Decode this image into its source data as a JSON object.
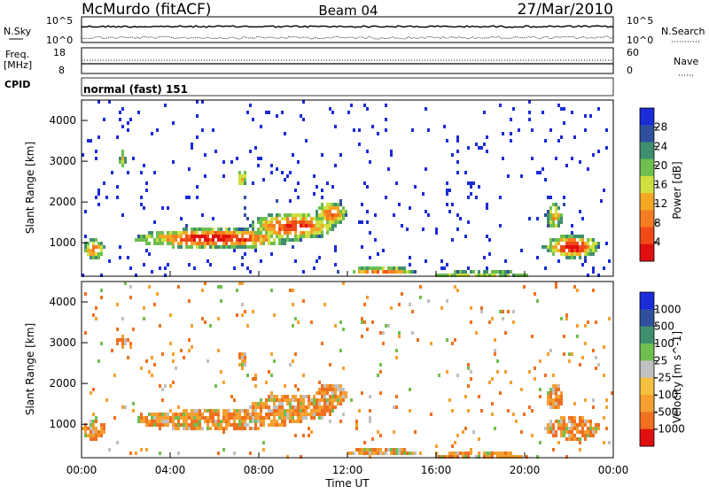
{
  "header": {
    "station": "McMurdo (fitACF)",
    "beam": "Beam 04",
    "date": "27/Mar/2010"
  },
  "noise_panel": {
    "left_label": "N.Sky",
    "right_label": "N.Search",
    "ticks_left": [
      "10^5",
      "10^0"
    ],
    "ticks_right": [
      "10^5",
      "10^0"
    ]
  },
  "freq_panel": {
    "left_label_top": "Freq.",
    "left_label_bottom": "[MHz]",
    "right_label": "Nave",
    "ticks_left": [
      "18",
      "8"
    ],
    "ticks_right": [
      "60",
      "0"
    ]
  },
  "cpid": {
    "label": "CPID",
    "value": "normal (fast) 151"
  },
  "colors": {
    "power_scale": [
      "#1a2bd8",
      "#2f4f9f",
      "#3f8f6f",
      "#6fbf4f",
      "#cfe040",
      "#f5a623",
      "#f57c20",
      "#f04a18",
      "#e01010"
    ],
    "velocity_scale": [
      "#1a2bd8",
      "#2f4f9f",
      "#3f8f6f",
      "#6fbf4f",
      "#c0c0c0",
      "#f5c040",
      "#f5a030",
      "#f07020",
      "#e01010"
    ]
  },
  "chart_data": [
    {
      "type": "heatmap",
      "name": "Power",
      "ylabel": "Slant Range [km]",
      "colorbar_label": "Power [dB]",
      "colorbar_ticks": [
        "28",
        "24",
        "20",
        "16",
        "12",
        "8",
        "4"
      ],
      "y_ticks": [
        "4000",
        "3000",
        "2000",
        "1000"
      ],
      "ylim": [
        180,
        4500
      ]
    },
    {
      "type": "heatmap",
      "name": "Velocity",
      "ylabel": "Slant Range [km]",
      "colorbar_label": "Velocity [m s^-1]",
      "colorbar_ticks": [
        "1000",
        "500",
        "100",
        "25",
        "-25",
        "-100",
        "-500",
        "-1000"
      ],
      "y_ticks": [
        "4000",
        "3000",
        "2000",
        "1000"
      ],
      "ylim": [
        180,
        4500
      ]
    }
  ],
  "x_axis": {
    "ticks": [
      "00:00",
      "04:00",
      "08:00",
      "12:00",
      "16:00",
      "20:00",
      "00:00"
    ],
    "label": "Time UT"
  }
}
